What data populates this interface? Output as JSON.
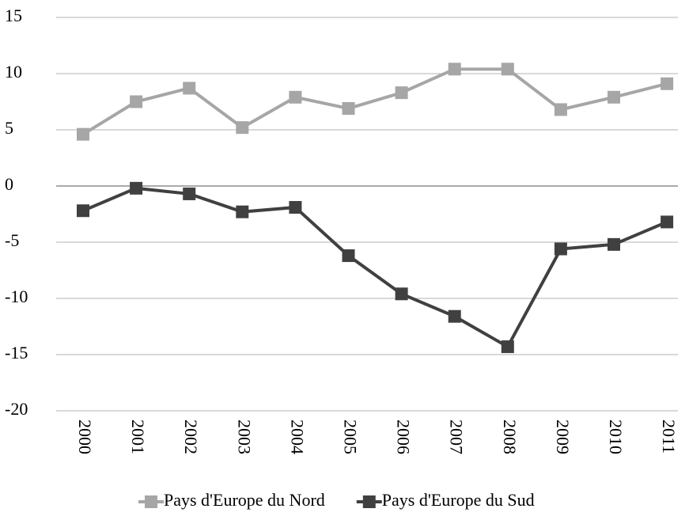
{
  "chart_data": {
    "type": "line",
    "categories": [
      "2000",
      "2001",
      "2002",
      "2003",
      "2004",
      "2005",
      "2006",
      "2007",
      "2008",
      "2009",
      "2010",
      "2011"
    ],
    "series": [
      {
        "name": "Pays d'Europe du Nord",
        "color": "#a6a6a6",
        "values": [
          4.6,
          7.5,
          8.7,
          5.2,
          7.9,
          6.9,
          8.3,
          10.4,
          10.4,
          6.8,
          7.9,
          9.1
        ]
      },
      {
        "name": "Pays d'Europe du Sud",
        "color": "#404040",
        "values": [
          -2.2,
          -0.2,
          -0.7,
          -2.3,
          -1.9,
          -6.2,
          -9.6,
          -11.6,
          -14.3,
          -5.6,
          -5.2,
          -3.2
        ]
      }
    ],
    "ylim": [
      -20,
      15
    ],
    "yticks": [
      -20,
      -15,
      -10,
      -5,
      0,
      5,
      10,
      15
    ],
    "grid": true,
    "legend": "bottom"
  }
}
